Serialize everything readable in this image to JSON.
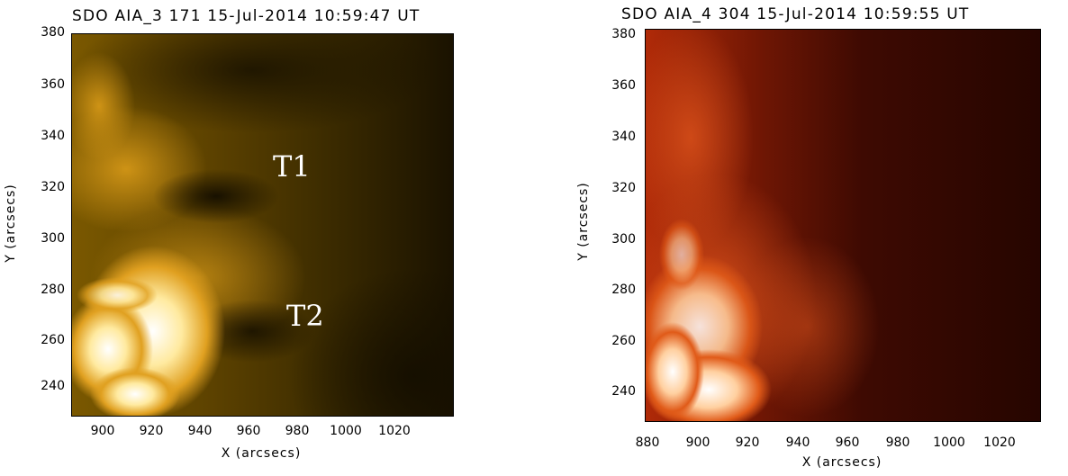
{
  "panels": [
    {
      "title": "SDO AIA_3 171 15-Jul-2014 10:59:47 UT",
      "xlabel": "X (arcsecs)",
      "ylabel": "Y (arcsecs)",
      "yticks": [
        "380",
        "360",
        "340",
        "320",
        "300",
        "280",
        "260",
        "240"
      ],
      "xticks": [
        "900",
        "920",
        "940",
        "960",
        "980",
        "1000",
        "1020"
      ],
      "annotations": [
        "T1",
        "T2"
      ],
      "colormap": "sdoaia171",
      "base_color": "#3a2a00"
    },
    {
      "title": "SDO AIA_4 304 15-Jul-2014 10:59:55 UT",
      "xlabel": "X (arcsecs)",
      "ylabel": "Y (arcsecs)",
      "yticks": [
        "380",
        "360",
        "340",
        "320",
        "300",
        "280",
        "260",
        "240"
      ],
      "xticks": [
        "880",
        "900",
        "920",
        "940",
        "960",
        "980",
        "1000",
        "1020"
      ],
      "annotations": [],
      "colormap": "sdoaia304",
      "base_color": "#3a0500"
    }
  ]
}
